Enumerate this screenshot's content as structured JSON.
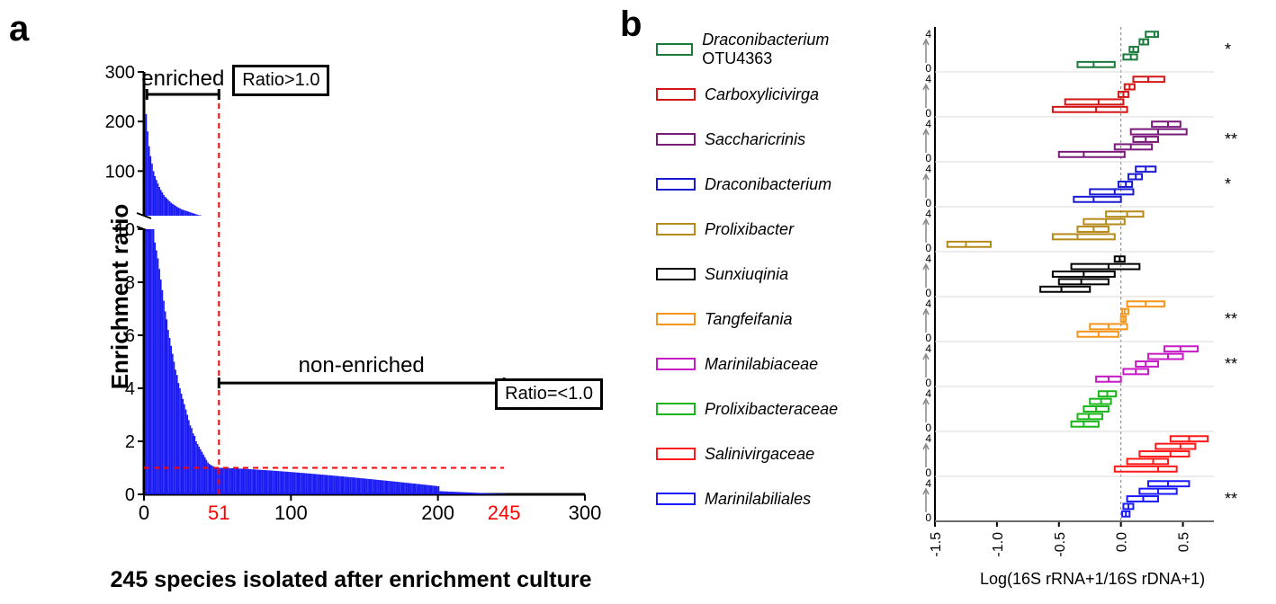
{
  "panel_a": {
    "label": "a",
    "ylabel": "Enrichment ratio",
    "xlabel": "245 species isolated after enrichment culture",
    "upper": {
      "ylim": [
        10,
        300
      ],
      "yticks": [
        100,
        200,
        300
      ]
    },
    "lower": {
      "ylim": [
        0,
        10
      ],
      "yticks": [
        0,
        2,
        4,
        6,
        8,
        10
      ]
    },
    "xlim": [
      0,
      300
    ],
    "xticks": [
      0,
      100,
      200,
      300
    ],
    "bar_color": "#1a1af5",
    "dashed_color": "#ff0000",
    "threshold_x": 51,
    "threshold_y": 1.0,
    "end_x": 245,
    "annotations": {
      "enriched": "enriched",
      "nonenriched": "non-enriched",
      "ratio_hi": "Ratio>1.0",
      "ratio_lo": "Ratio=<1.0",
      "x51": "51",
      "x245": "245"
    },
    "bars_upper": [
      215,
      180,
      150,
      130,
      115,
      100,
      90,
      82,
      75,
      68,
      62,
      57,
      52,
      48,
      45,
      42,
      39,
      36,
      34,
      32,
      30,
      28,
      26,
      25,
      23,
      22,
      21,
      20,
      19,
      18,
      17,
      16,
      15,
      14,
      13,
      12,
      11,
      11,
      10,
      10
    ],
    "bars_lower_leading": [
      10,
      10,
      10,
      10,
      10,
      10,
      9.5,
      9.2,
      8.9,
      8.5,
      8.1,
      7.7,
      7.3,
      6.9,
      6.6,
      6.2,
      5.9,
      5.6,
      5.3,
      5.0,
      4.7,
      4.5,
      4.2,
      4.0,
      3.8,
      3.6,
      3.4,
      3.2,
      3.0,
      2.8,
      2.6,
      2.5,
      2.3,
      2.2,
      2.0,
      1.9,
      1.8,
      1.7,
      1.6,
      1.5,
      1.4,
      1.3,
      1.2,
      1.15,
      1.1,
      1.08,
      1.05,
      1.03,
      1.02,
      1.01,
      1.0
    ],
    "bars_lower_trailing_max": 1.0
  },
  "panel_b": {
    "label": "b",
    "xlabel": "Log(16S rRNA+1/16S rDNA+1)",
    "xlim": [
      -1.5,
      0.75
    ],
    "xticks": [
      -1.5,
      -1.0,
      -0.5,
      0.0,
      0.5
    ],
    "y_group_ticks": [
      0,
      4
    ],
    "grid_color": "#d9d9d9",
    "zero_line_color": "#808080",
    "groups": [
      {
        "name": "Draconibacterium OTU4363",
        "name_extra": " OTU4363",
        "name_italic": "Draconibacterium",
        "color": "#1a7a3a",
        "sig": "*",
        "boxes": [
          {
            "lo": -0.35,
            "hi": -0.05,
            "med": -0.22
          },
          {
            "lo": 0.02,
            "hi": 0.13,
            "med": 0.08
          },
          {
            "lo": 0.07,
            "hi": 0.14,
            "med": 0.1
          },
          {
            "lo": 0.15,
            "hi": 0.22,
            "med": 0.18
          },
          {
            "lo": 0.2,
            "hi": 0.3,
            "med": 0.27
          }
        ]
      },
      {
        "name": "Carboxylicivirga",
        "color": "#d41515",
        "sig": "",
        "boxes": [
          {
            "lo": -0.55,
            "hi": 0.05,
            "med": -0.2
          },
          {
            "lo": -0.45,
            "hi": 0.02,
            "med": -0.18
          },
          {
            "lo": -0.02,
            "hi": 0.06,
            "med": 0.02
          },
          {
            "lo": 0.03,
            "hi": 0.11,
            "med": 0.07
          },
          {
            "lo": 0.1,
            "hi": 0.35,
            "med": 0.22
          }
        ]
      },
      {
        "name": "Saccharicrinis",
        "color": "#7a1a7a",
        "sig": "**",
        "boxes": [
          {
            "lo": -0.5,
            "hi": 0.03,
            "med": -0.3
          },
          {
            "lo": -0.05,
            "hi": 0.25,
            "med": 0.08
          },
          {
            "lo": 0.1,
            "hi": 0.3,
            "med": 0.2
          },
          {
            "lo": 0.08,
            "hi": 0.53,
            "med": 0.3
          },
          {
            "lo": 0.25,
            "hi": 0.48,
            "med": 0.38
          }
        ]
      },
      {
        "name": "Draconibacterium",
        "color": "#1a1ad4",
        "sig": "*",
        "boxes": [
          {
            "lo": -0.38,
            "hi": 0.0,
            "med": -0.22
          },
          {
            "lo": -0.25,
            "hi": 0.1,
            "med": -0.05
          },
          {
            "lo": -0.02,
            "hi": 0.09,
            "med": 0.04
          },
          {
            "lo": 0.06,
            "hi": 0.17,
            "med": 0.12
          },
          {
            "lo": 0.12,
            "hi": 0.28,
            "med": 0.2
          }
        ]
      },
      {
        "name": "Prolixibacter",
        "color": "#b58a1a",
        "sig": "",
        "boxes": [
          {
            "lo": -1.4,
            "hi": -1.05,
            "med": -1.25
          },
          {
            "lo": -0.55,
            "hi": -0.05,
            "med": -0.35
          },
          {
            "lo": -0.35,
            "hi": -0.1,
            "med": -0.22
          },
          {
            "lo": -0.3,
            "hi": 0.03,
            "med": -0.12
          },
          {
            "lo": -0.12,
            "hi": 0.18,
            "med": 0.05
          }
        ]
      },
      {
        "name": "Sunxiuqinia",
        "color": "#000000",
        "sig": "",
        "boxes": [
          {
            "lo": -0.65,
            "hi": -0.25,
            "med": -0.48
          },
          {
            "lo": -0.5,
            "hi": -0.1,
            "med": -0.32
          },
          {
            "lo": -0.55,
            "hi": -0.05,
            "med": -0.3
          },
          {
            "lo": -0.4,
            "hi": 0.15,
            "med": -0.1
          },
          {
            "lo": -0.05,
            "hi": 0.03,
            "med": -0.01
          }
        ]
      },
      {
        "name": "Tangfeifania",
        "color": "#f5941a",
        "sig": "**",
        "boxes": [
          {
            "lo": -0.35,
            "hi": -0.02,
            "med": -0.18
          },
          {
            "lo": -0.25,
            "hi": 0.05,
            "med": -0.1
          },
          {
            "lo": 0.0,
            "hi": 0.04,
            "med": 0.02
          },
          {
            "lo": 0.01,
            "hi": 0.06,
            "med": 0.03
          },
          {
            "lo": 0.05,
            "hi": 0.35,
            "med": 0.2
          }
        ]
      },
      {
        "name": "Marinilabiaceae",
        "color": "#c71ac7",
        "sig": "**",
        "boxes": [
          {
            "lo": -0.2,
            "hi": 0.0,
            "med": -0.1
          },
          {
            "lo": 0.02,
            "hi": 0.22,
            "med": 0.12
          },
          {
            "lo": 0.12,
            "hi": 0.3,
            "med": 0.2
          },
          {
            "lo": 0.22,
            "hi": 0.5,
            "med": 0.38
          },
          {
            "lo": 0.35,
            "hi": 0.62,
            "med": 0.48
          }
        ]
      },
      {
        "name": "Prolixibacteraceae",
        "color": "#1ab51a",
        "sig": "",
        "boxes": [
          {
            "lo": -0.4,
            "hi": -0.18,
            "med": -0.3
          },
          {
            "lo": -0.35,
            "hi": -0.15,
            "med": -0.26
          },
          {
            "lo": -0.3,
            "hi": -0.1,
            "med": -0.2
          },
          {
            "lo": -0.25,
            "hi": -0.08,
            "med": -0.16
          },
          {
            "lo": -0.18,
            "hi": -0.04,
            "med": -0.11
          }
        ]
      },
      {
        "name": "Salinivirgaceae",
        "color": "#ff1a1a",
        "sig": "",
        "boxes": null
      },
      {
        "name": "Marinilabiliales",
        "color": "#1a1aff",
        "sig": "**",
        "boxes": [
          {
            "lo": 0.01,
            "hi": 0.07,
            "med": 0.04
          },
          {
            "lo": 0.02,
            "hi": 0.1,
            "med": 0.06
          },
          {
            "lo": 0.05,
            "hi": 0.3,
            "med": 0.18
          },
          {
            "lo": 0.15,
            "hi": 0.45,
            "med": 0.3
          },
          {
            "lo": 0.22,
            "hi": 0.55,
            "med": 0.38
          }
        ]
      }
    ],
    "salinivirgaceae_boxes": [
      {
        "lo": -0.05,
        "hi": 0.45,
        "med": 0.3
      },
      {
        "lo": 0.05,
        "hi": 0.38,
        "med": 0.26
      },
      {
        "lo": 0.15,
        "hi": 0.55,
        "med": 0.4
      },
      {
        "lo": 0.28,
        "hi": 0.6,
        "med": 0.48
      },
      {
        "lo": 0.4,
        "hi": 0.7,
        "med": 0.55
      }
    ]
  }
}
